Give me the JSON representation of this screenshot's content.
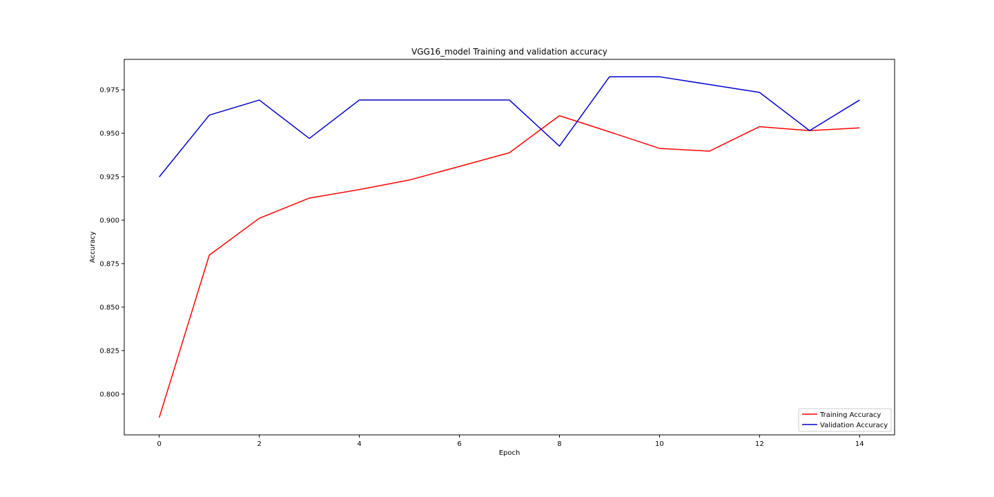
{
  "chart_data": {
    "type": "line",
    "title": "VGG16_model Training and validation accuracy",
    "xlabel": "Epoch",
    "ylabel": "Accuracy",
    "x": [
      0,
      1,
      2,
      3,
      4,
      5,
      6,
      7,
      8,
      9,
      10,
      11,
      12,
      13,
      14
    ],
    "xlim": [
      -0.7,
      14.7
    ],
    "ylim": [
      0.7765,
      0.9925
    ],
    "xticks": [
      0,
      2,
      4,
      6,
      8,
      10,
      12,
      14
    ],
    "yticks": [
      0.8,
      0.825,
      0.85,
      0.875,
      0.9,
      0.925,
      0.95,
      0.975
    ],
    "xtick_labels": [
      "0",
      "2",
      "4",
      "6",
      "8",
      "10",
      "12",
      "14"
    ],
    "ytick_labels": [
      "0.800",
      "0.825",
      "0.850",
      "0.875",
      "0.900",
      "0.925",
      "0.950",
      "0.975"
    ],
    "grid": false,
    "legend_position": "bottom-right",
    "series": [
      {
        "name": "Training Accuracy",
        "color": "#ff0000",
        "values": [
          0.7865,
          0.8799,
          0.9011,
          0.9127,
          0.9176,
          0.9231,
          0.9309,
          0.9388,
          0.9601,
          0.9508,
          0.9413,
          0.9397,
          0.9538,
          0.9515,
          0.9531
        ]
      },
      {
        "name": "Validation Accuracy",
        "color": "#0000cc",
        "values": [
          0.9249,
          0.9604,
          0.9691,
          0.947,
          0.9691,
          0.9691,
          0.9691,
          0.9691,
          0.9426,
          0.9825,
          0.9825,
          0.978,
          0.9735,
          0.9515,
          0.9691
        ]
      }
    ]
  }
}
